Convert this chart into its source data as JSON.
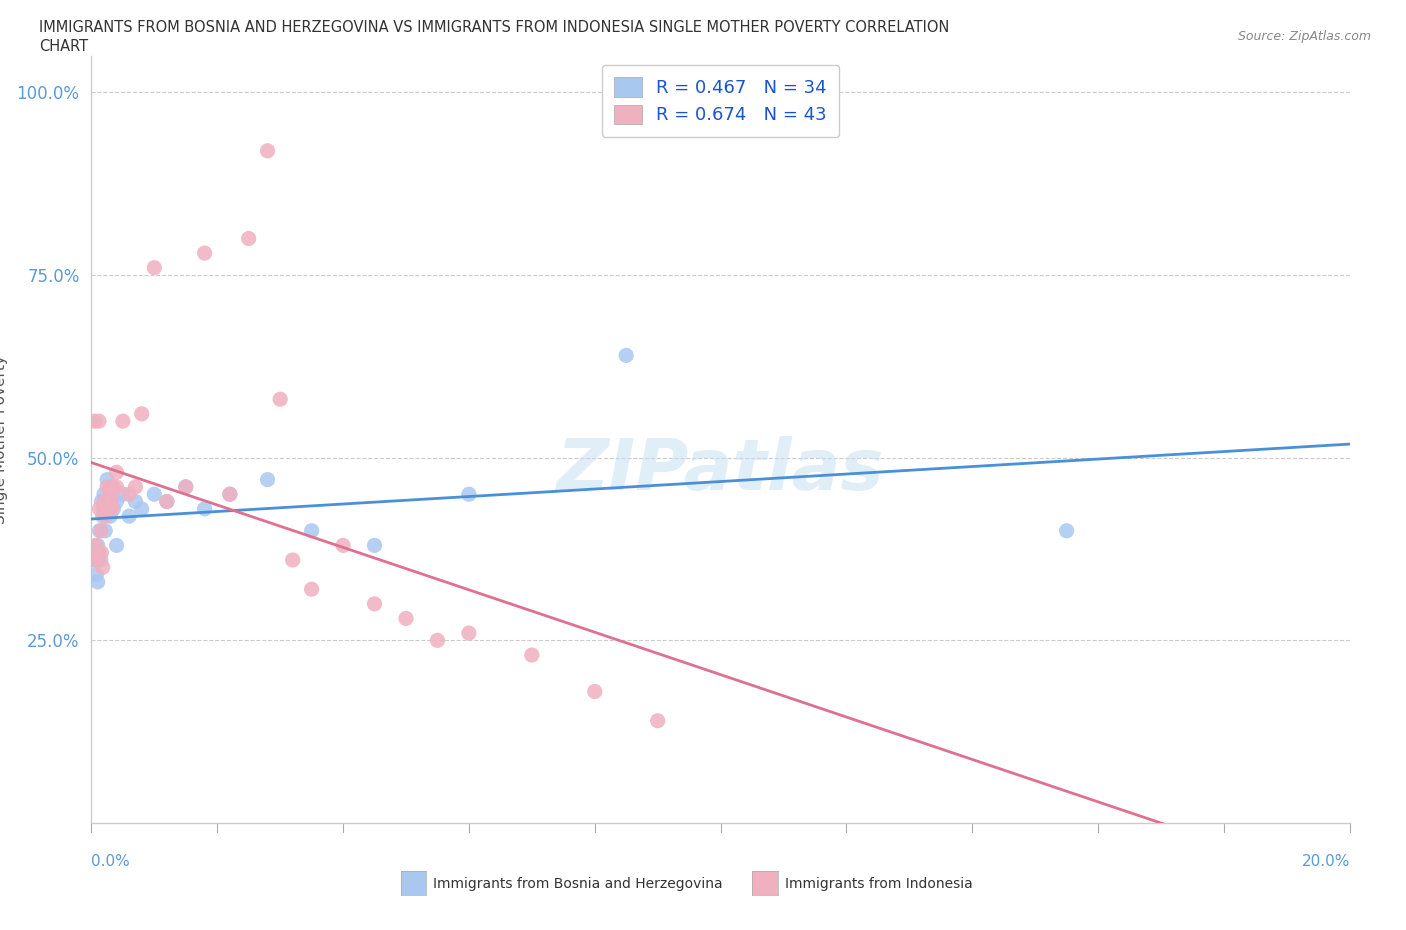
{
  "title_line1": "IMMIGRANTS FROM BOSNIA AND HERZEGOVINA VS IMMIGRANTS FROM INDONESIA SINGLE MOTHER POVERTY CORRELATION",
  "title_line2": "CHART",
  "source": "Source: ZipAtlas.com",
  "ylabel": "Single Mother Poverty",
  "series1_name": "Immigrants from Bosnia and Herzegovina",
  "series1_color": "#a8c8f0",
  "series1_line_color": "#4a90d9",
  "series1_R": 0.467,
  "series1_N": 34,
  "series2_name": "Immigrants from Indonesia",
  "series2_color": "#f0b0c0",
  "series2_line_color": "#e0708888",
  "series2_R": 0.674,
  "series2_N": 43,
  "watermark": "ZIPatlas",
  "background_color": "#ffffff",
  "grid_color": "#cccccc",
  "xlim": [
    0.0,
    0.2
  ],
  "ylim": [
    0.0,
    1.05
  ],
  "bosnia_x": [
    0.0005,
    0.0008,
    0.001,
    0.001,
    0.0012,
    0.0013,
    0.0015,
    0.0016,
    0.0018,
    0.002,
    0.002,
    0.0022,
    0.0025,
    0.003,
    0.003,
    0.0032,
    0.0035,
    0.004,
    0.004,
    0.005,
    0.006,
    0.007,
    0.008,
    0.01,
    0.012,
    0.015,
    0.018,
    0.022,
    0.028,
    0.035,
    0.045,
    0.06,
    0.085,
    0.155
  ],
  "bosnia_y": [
    0.36,
    0.34,
    0.33,
    0.38,
    0.37,
    0.4,
    0.36,
    0.44,
    0.42,
    0.45,
    0.43,
    0.4,
    0.47,
    0.44,
    0.42,
    0.46,
    0.43,
    0.44,
    0.38,
    0.45,
    0.42,
    0.44,
    0.43,
    0.45,
    0.44,
    0.46,
    0.43,
    0.45,
    0.47,
    0.4,
    0.38,
    0.45,
    0.64,
    0.4
  ],
  "indonesia_x": [
    0.0003,
    0.0005,
    0.0007,
    0.001,
    0.001,
    0.0012,
    0.0013,
    0.0015,
    0.0016,
    0.0018,
    0.002,
    0.002,
    0.0022,
    0.0025,
    0.003,
    0.003,
    0.0032,
    0.0033,
    0.0035,
    0.004,
    0.004,
    0.005,
    0.006,
    0.007,
    0.008,
    0.01,
    0.012,
    0.015,
    0.018,
    0.022,
    0.025,
    0.028,
    0.03,
    0.032,
    0.035,
    0.04,
    0.045,
    0.05,
    0.055,
    0.06,
    0.07,
    0.08,
    0.09
  ],
  "indonesia_y": [
    0.36,
    0.55,
    0.38,
    0.36,
    0.37,
    0.55,
    0.43,
    0.4,
    0.37,
    0.35,
    0.43,
    0.44,
    0.42,
    0.46,
    0.45,
    0.43,
    0.44,
    0.43,
    0.46,
    0.48,
    0.46,
    0.55,
    0.45,
    0.46,
    0.56,
    0.76,
    0.44,
    0.46,
    0.78,
    0.45,
    0.8,
    0.92,
    0.58,
    0.36,
    0.32,
    0.38,
    0.3,
    0.28,
    0.25,
    0.26,
    0.23,
    0.18,
    0.14
  ]
}
